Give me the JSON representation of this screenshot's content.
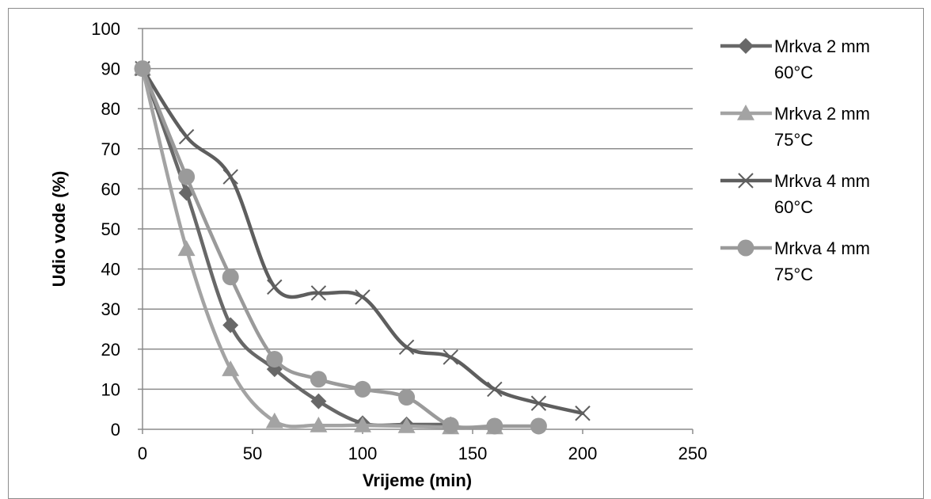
{
  "chart_data": {
    "type": "line",
    "smooth": true,
    "title": "",
    "xlabel": "Vrijeme (min)",
    "ylabel": "Udio vode (%)",
    "xlim": [
      0,
      250
    ],
    "ylim": [
      0,
      100
    ],
    "xticks": [
      "0",
      "50",
      "100",
      "150",
      "200",
      "250"
    ],
    "yticks": [
      "0",
      "10",
      "20",
      "30",
      "40",
      "50",
      "60",
      "70",
      "80",
      "90",
      "100"
    ],
    "grid": "horizontal",
    "legend_position": "right",
    "series": [
      {
        "name": [
          "Mrkva 2 mm",
          "60°C"
        ],
        "color": "#686868",
        "marker": "diamond",
        "x": [
          0,
          20,
          40,
          60,
          80,
          100,
          120,
          140
        ],
        "y": [
          90,
          59,
          26,
          15,
          7,
          1.5,
          1.2,
          1.2
        ]
      },
      {
        "name": [
          "Mrkva 2 mm",
          "75°C"
        ],
        "color": "#a3a3a3",
        "marker": "triangle",
        "x": [
          0,
          20,
          40,
          60,
          80,
          100,
          120,
          140,
          160
        ],
        "y": [
          90,
          45,
          15,
          2,
          1,
          1,
          0.8,
          0.5,
          0.5
        ]
      },
      {
        "name": [
          "Mrkva 4 mm",
          "60°C"
        ],
        "color": "#5e5e5e",
        "marker": "x",
        "x": [
          0,
          20,
          40,
          60,
          80,
          100,
          120,
          140,
          160,
          180,
          200
        ],
        "y": [
          90,
          73,
          63,
          35.5,
          34,
          33,
          20.5,
          18,
          10,
          6.5,
          4
        ]
      },
      {
        "name": [
          "Mrkva 4 mm",
          "75°C"
        ],
        "color": "#9a9a9a",
        "marker": "circle",
        "x": [
          0,
          20,
          40,
          60,
          80,
          100,
          120,
          140,
          160,
          180
        ],
        "y": [
          90,
          63,
          38,
          17.5,
          12.5,
          10,
          8,
          1,
          0.8,
          0.8
        ]
      }
    ]
  }
}
